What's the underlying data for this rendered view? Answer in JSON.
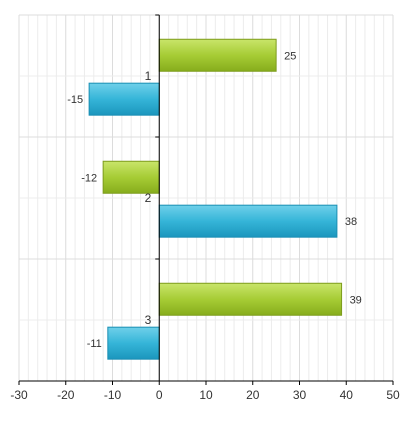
{
  "chart_data": {
    "type": "bar",
    "orientation": "horizontal",
    "title": "",
    "xlabel": "",
    "ylabel": "",
    "categories": [
      "1",
      "2",
      "3"
    ],
    "series": [
      {
        "values": [
          25,
          -12,
          39
        ],
        "color": "#9cc42b"
      },
      {
        "values": [
          -15,
          38,
          -11
        ],
        "color": "#2eb1d2"
      }
    ],
    "xlim": [
      -30,
      50
    ],
    "x_ticks": [
      -30,
      -20,
      -10,
      0,
      10,
      20,
      30,
      40,
      50
    ],
    "data_labels": true,
    "grid": true,
    "legend": "none"
  }
}
